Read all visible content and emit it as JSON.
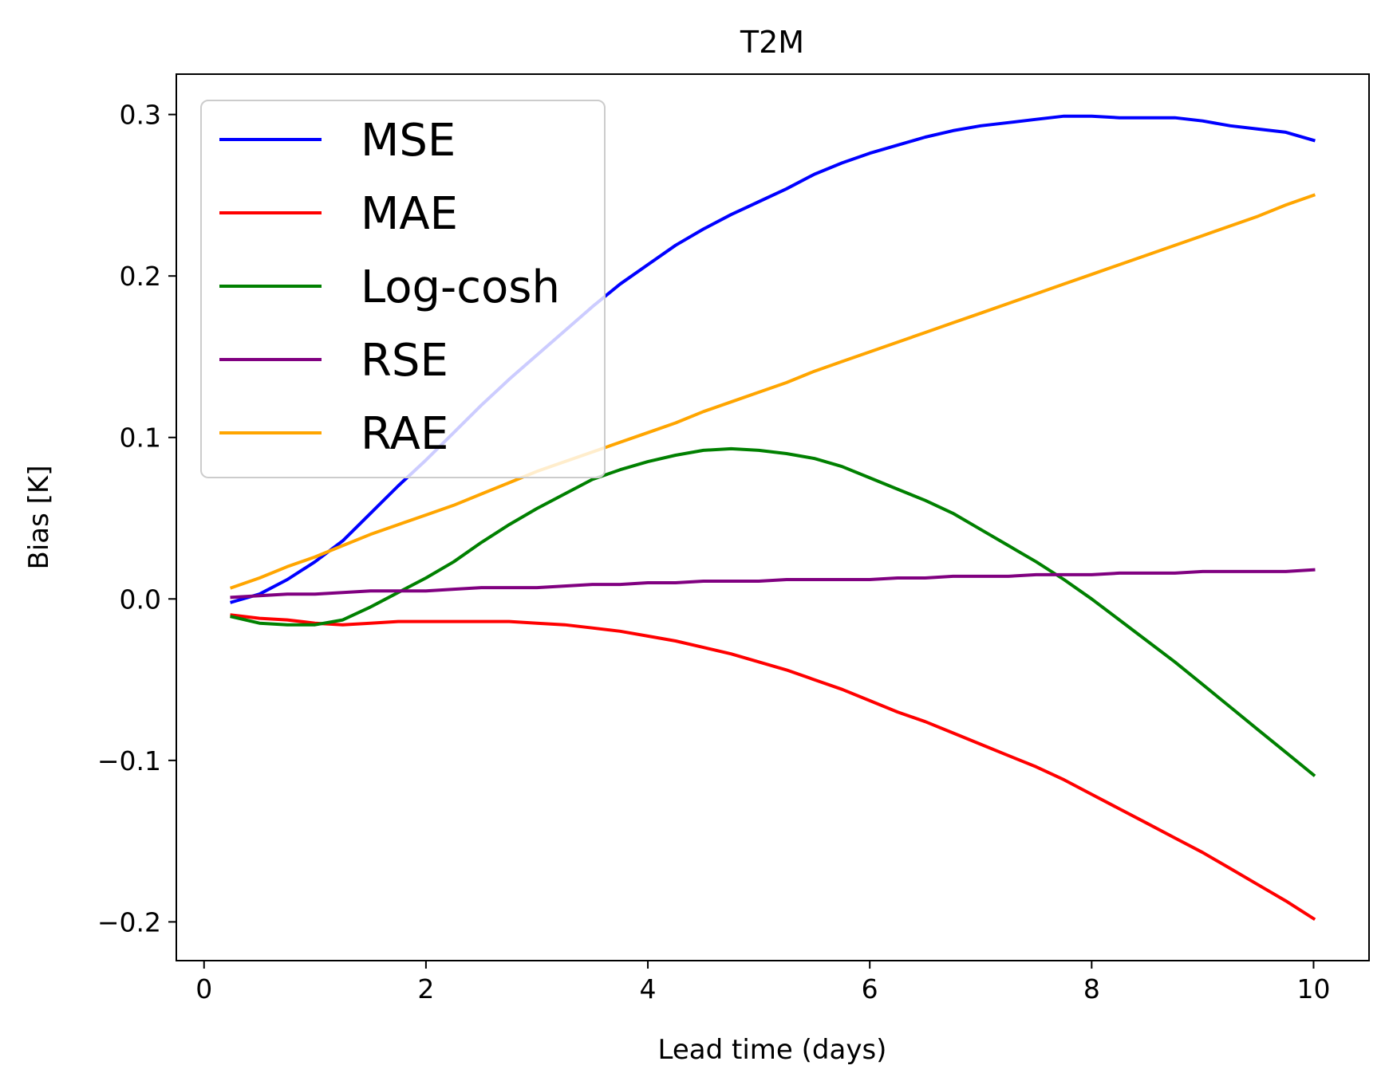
{
  "chart_data": {
    "type": "line",
    "title": "T2M",
    "xlabel": "Lead time (days)",
    "ylabel": "Bias [K]",
    "xlim": [
      -0.25,
      10.5
    ],
    "ylim": [
      -0.224,
      0.325
    ],
    "xticks": [
      0,
      2,
      4,
      6,
      8,
      10
    ],
    "xtick_labels": [
      "0",
      "2",
      "4",
      "6",
      "8",
      "10"
    ],
    "yticks": [
      -0.2,
      -0.1,
      0.0,
      0.1,
      0.2,
      0.3
    ],
    "ytick_labels": [
      "−0.2",
      "−0.1",
      "0.0",
      "0.1",
      "0.2",
      "0.3"
    ],
    "grid": false,
    "legend_position": "top-left",
    "x": [
      0.25,
      0.5,
      0.75,
      1.0,
      1.25,
      1.5,
      1.75,
      2.0,
      2.25,
      2.5,
      2.75,
      3.0,
      3.25,
      3.5,
      3.75,
      4.0,
      4.25,
      4.5,
      4.75,
      5.0,
      5.25,
      5.5,
      5.75,
      6.0,
      6.25,
      6.5,
      6.75,
      7.0,
      7.25,
      7.5,
      7.75,
      8.0,
      8.25,
      8.5,
      8.75,
      9.0,
      9.25,
      9.5,
      9.75,
      10.0
    ],
    "series": [
      {
        "name": "MSE",
        "color": "#0000ff",
        "values": [
          -0.002,
          0.003,
          0.012,
          0.023,
          0.036,
          0.053,
          0.07,
          0.086,
          0.103,
          0.12,
          0.136,
          0.151,
          0.166,
          0.181,
          0.195,
          0.207,
          0.219,
          0.229,
          0.238,
          0.246,
          0.254,
          0.263,
          0.27,
          0.276,
          0.281,
          0.286,
          0.29,
          0.293,
          0.295,
          0.297,
          0.299,
          0.299,
          0.298,
          0.298,
          0.298,
          0.296,
          0.293,
          0.291,
          0.289,
          0.284
        ]
      },
      {
        "name": "MAE",
        "color": "#ff0000",
        "values": [
          -0.01,
          -0.012,
          -0.013,
          -0.015,
          -0.016,
          -0.015,
          -0.014,
          -0.014,
          -0.014,
          -0.014,
          -0.014,
          -0.015,
          -0.016,
          -0.018,
          -0.02,
          -0.023,
          -0.026,
          -0.03,
          -0.034,
          -0.039,
          -0.044,
          -0.05,
          -0.056,
          -0.063,
          -0.07,
          -0.076,
          -0.083,
          -0.09,
          -0.097,
          -0.104,
          -0.112,
          -0.121,
          -0.13,
          -0.139,
          -0.148,
          -0.157,
          -0.167,
          -0.177,
          -0.187,
          -0.198
        ]
      },
      {
        "name": "Log-cosh",
        "color": "#008000",
        "values": [
          -0.011,
          -0.015,
          -0.016,
          -0.016,
          -0.013,
          -0.005,
          0.004,
          0.013,
          0.023,
          0.035,
          0.046,
          0.056,
          0.065,
          0.074,
          0.08,
          0.085,
          0.089,
          0.092,
          0.093,
          0.092,
          0.09,
          0.087,
          0.082,
          0.075,
          0.068,
          0.061,
          0.053,
          0.043,
          0.033,
          0.023,
          0.012,
          0.0,
          -0.013,
          -0.026,
          -0.039,
          -0.053,
          -0.067,
          -0.081,
          -0.095,
          -0.109
        ]
      },
      {
        "name": "RSE",
        "color": "#800080",
        "values": [
          0.001,
          0.002,
          0.003,
          0.003,
          0.004,
          0.005,
          0.005,
          0.005,
          0.006,
          0.007,
          0.007,
          0.007,
          0.008,
          0.009,
          0.009,
          0.01,
          0.01,
          0.011,
          0.011,
          0.011,
          0.012,
          0.012,
          0.012,
          0.012,
          0.013,
          0.013,
          0.014,
          0.014,
          0.014,
          0.015,
          0.015,
          0.015,
          0.016,
          0.016,
          0.016,
          0.017,
          0.017,
          0.017,
          0.017,
          0.018
        ]
      },
      {
        "name": "RAE",
        "color": "#ffa500",
        "values": [
          0.007,
          0.013,
          0.02,
          0.026,
          0.033,
          0.04,
          0.046,
          0.052,
          0.058,
          0.065,
          0.072,
          0.079,
          0.085,
          0.091,
          0.097,
          0.103,
          0.109,
          0.116,
          0.122,
          0.128,
          0.134,
          0.141,
          0.147,
          0.153,
          0.159,
          0.165,
          0.171,
          0.177,
          0.183,
          0.189,
          0.195,
          0.201,
          0.207,
          0.213,
          0.219,
          0.225,
          0.231,
          0.237,
          0.244,
          0.25
        ]
      }
    ]
  }
}
